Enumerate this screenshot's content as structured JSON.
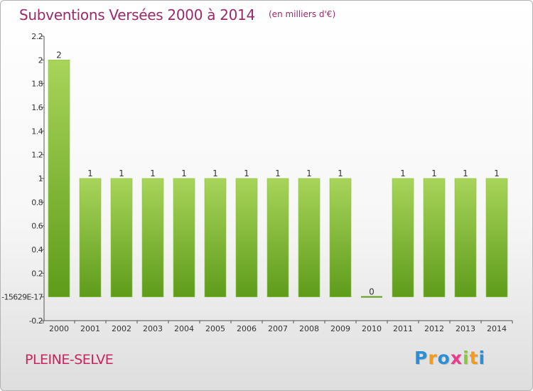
{
  "title": "Subventions Versées 2000 à 2014",
  "unit": "(en milliers d'€)",
  "location": "PLEINE-SELVE",
  "brand": {
    "text": "Proxiti",
    "letter_colors": [
      "#2a8fd6",
      "#f29b1e",
      "#2a8fd6",
      "#e83b8d",
      "#8cc63f",
      "#f29b1e",
      "#2a8fd6"
    ]
  },
  "colors": {
    "bar_top": "#a8d45a",
    "bar_bottom": "#5e9c1a",
    "bar_edge": "#8cc63f",
    "axis": "#555555",
    "text": "#333333"
  },
  "chart_data": {
    "type": "bar",
    "categories": [
      "2000",
      "2001",
      "2002",
      "2003",
      "2004",
      "2005",
      "2006",
      "2007",
      "2008",
      "2009",
      "2010",
      "2011",
      "2012",
      "2013",
      "2014"
    ],
    "values": [
      2,
      1,
      1,
      1,
      1,
      1,
      1,
      1,
      1,
      1,
      0,
      1,
      1,
      1,
      1
    ],
    "data_labels": [
      "2",
      "1",
      "1",
      "1",
      "1",
      "1",
      "1",
      "1",
      "1",
      "1",
      "0",
      "1",
      "1",
      "1",
      "1"
    ],
    "yticks": [
      {
        "value": 2.2,
        "label": "2.2"
      },
      {
        "value": 2.0,
        "label": "2"
      },
      {
        "value": 1.8,
        "label": "1.8"
      },
      {
        "value": 1.6,
        "label": "1.6"
      },
      {
        "value": 1.4,
        "label": "1.4"
      },
      {
        "value": 1.2,
        "label": "1.2"
      },
      {
        "value": 1.0,
        "label": "1"
      },
      {
        "value": 0.8,
        "label": "0.8"
      },
      {
        "value": 0.6,
        "label": "0.6"
      },
      {
        "value": 0.4,
        "label": "0.4"
      },
      {
        "value": 0.2,
        "label": "0.2"
      },
      {
        "value": 0.0,
        "label": "-15629E-17"
      },
      {
        "value": -0.2,
        "label": "-0.2"
      }
    ],
    "ylim": [
      -0.2,
      2.2
    ],
    "grid": false,
    "legend": false
  }
}
